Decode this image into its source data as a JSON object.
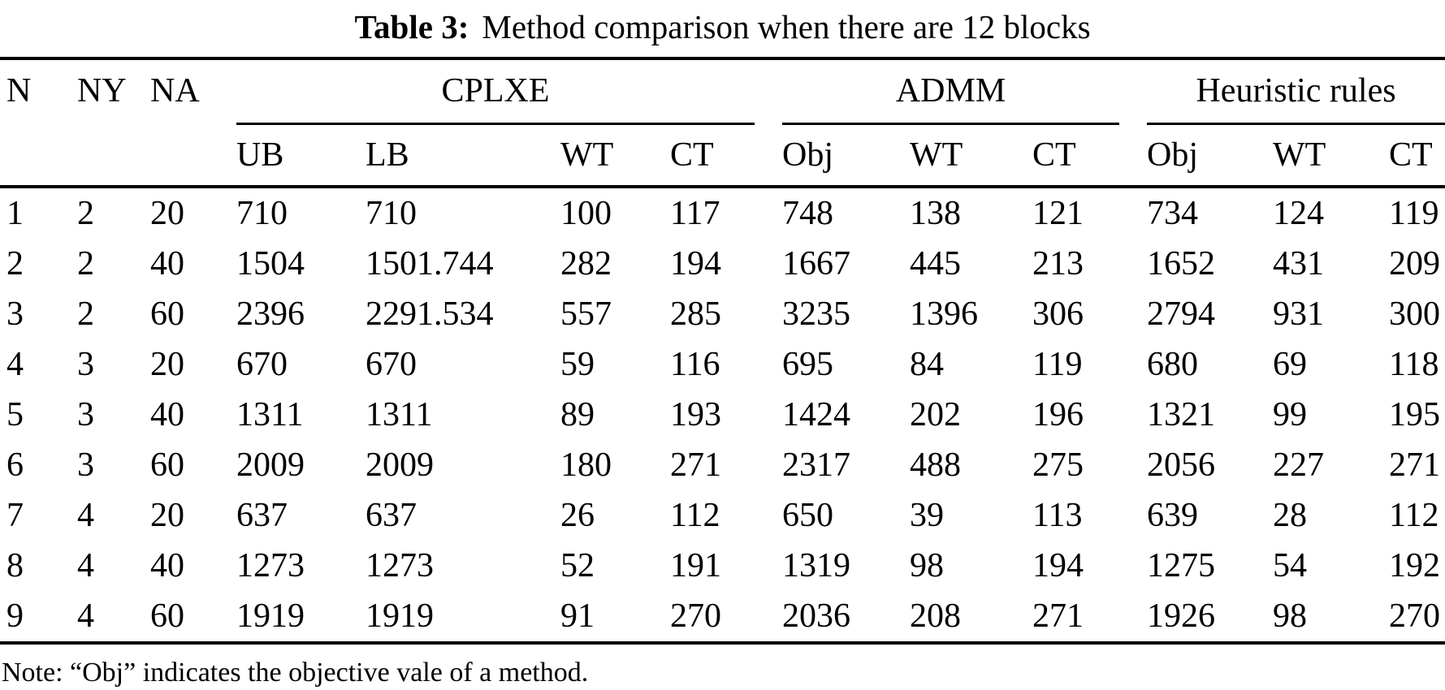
{
  "title": {
    "label": "Table 3:",
    "text": "Method comparison when there are 12 blocks"
  },
  "table": {
    "id_headers": [
      "N",
      "NY",
      "NA"
    ],
    "groups": [
      {
        "label": "CPLXE",
        "columns": [
          "UB",
          "LB",
          "WT",
          "CT"
        ]
      },
      {
        "label": "ADMM",
        "columns": [
          "Obj",
          "WT",
          "CT"
        ]
      },
      {
        "label": "Heuristic rules",
        "columns": [
          "Obj",
          "WT",
          "CT"
        ]
      }
    ],
    "rows": [
      [
        "1",
        "2",
        "20",
        "710",
        "710",
        "100",
        "117",
        "748",
        "138",
        "121",
        "734",
        "124",
        "119"
      ],
      [
        "2",
        "2",
        "40",
        "1504",
        "1501.744",
        "282",
        "194",
        "1667",
        "445",
        "213",
        "1652",
        "431",
        "209"
      ],
      [
        "3",
        "2",
        "60",
        "2396",
        "2291.534",
        "557",
        "285",
        "3235",
        "1396",
        "306",
        "2794",
        "931",
        "300"
      ],
      [
        "4",
        "3",
        "20",
        "670",
        "670",
        "59",
        "116",
        "695",
        "84",
        "119",
        "680",
        "69",
        "118"
      ],
      [
        "5",
        "3",
        "40",
        "1311",
        "1311",
        "89",
        "193",
        "1424",
        "202",
        "196",
        "1321",
        "99",
        "195"
      ],
      [
        "6",
        "3",
        "60",
        "2009",
        "2009",
        "180",
        "271",
        "2317",
        "488",
        "275",
        "2056",
        "227",
        "271"
      ],
      [
        "7",
        "4",
        "20",
        "637",
        "637",
        "26",
        "112",
        "650",
        "39",
        "113",
        "639",
        "28",
        "112"
      ],
      [
        "8",
        "4",
        "40",
        "1273",
        "1273",
        "52",
        "191",
        "1319",
        "98",
        "194",
        "1275",
        "54",
        "192"
      ],
      [
        "9",
        "4",
        "60",
        "1919",
        "1919",
        "91",
        "270",
        "2036",
        "208",
        "271",
        "1926",
        "98",
        "270"
      ]
    ],
    "note": "Note: “Obj” indicates the objective vale of a method.",
    "text_color": "#000000",
    "background_color": "#ffffff"
  }
}
